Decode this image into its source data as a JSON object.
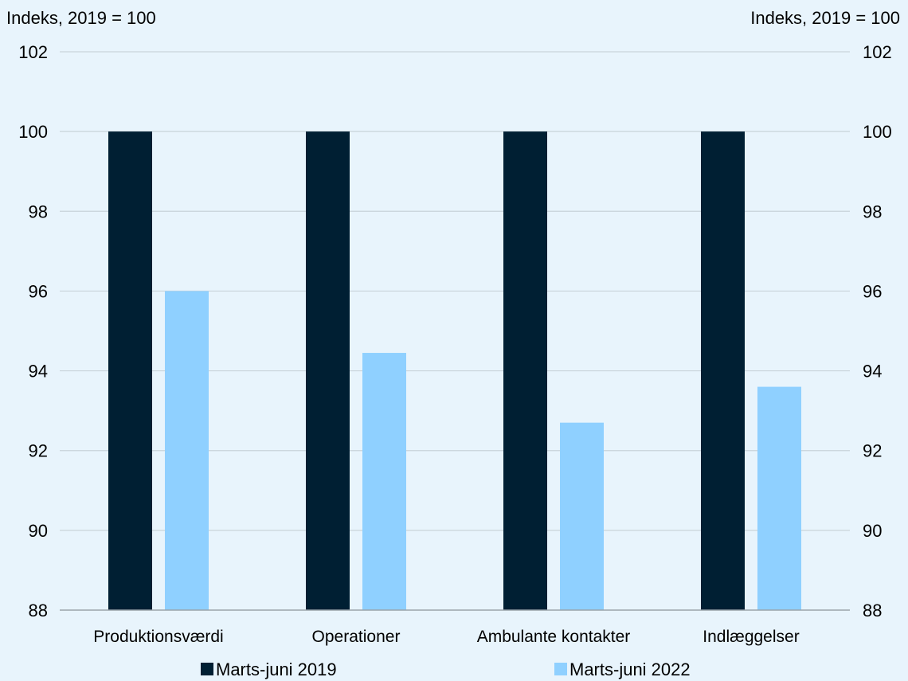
{
  "chart_data": {
    "type": "bar",
    "y_axis_label_left": "Indeks, 2019 = 100",
    "y_axis_label_right": "Indeks, 2019 = 100",
    "ylim": [
      88,
      102
    ],
    "yticks": [
      "88",
      "90",
      "92",
      "94",
      "96",
      "98",
      "100",
      "102"
    ],
    "categories": [
      "Produktionsværdi",
      "Operationer",
      "Ambulante kontakter",
      "Indlæggelser"
    ],
    "series": [
      {
        "name": "Marts-juni 2019",
        "color": "#001f33",
        "values": [
          100,
          100,
          100,
          100
        ]
      },
      {
        "name": "Marts-juni 2022",
        "color": "#8fd0ff",
        "values": [
          96.0,
          94.45,
          92.7,
          93.6
        ]
      }
    ],
    "grid": true,
    "legend_placement": "bottom",
    "colors": {
      "background": "#e8f4fc",
      "gridline": "#c9d3da",
      "axis": "#9aa3aa"
    }
  }
}
